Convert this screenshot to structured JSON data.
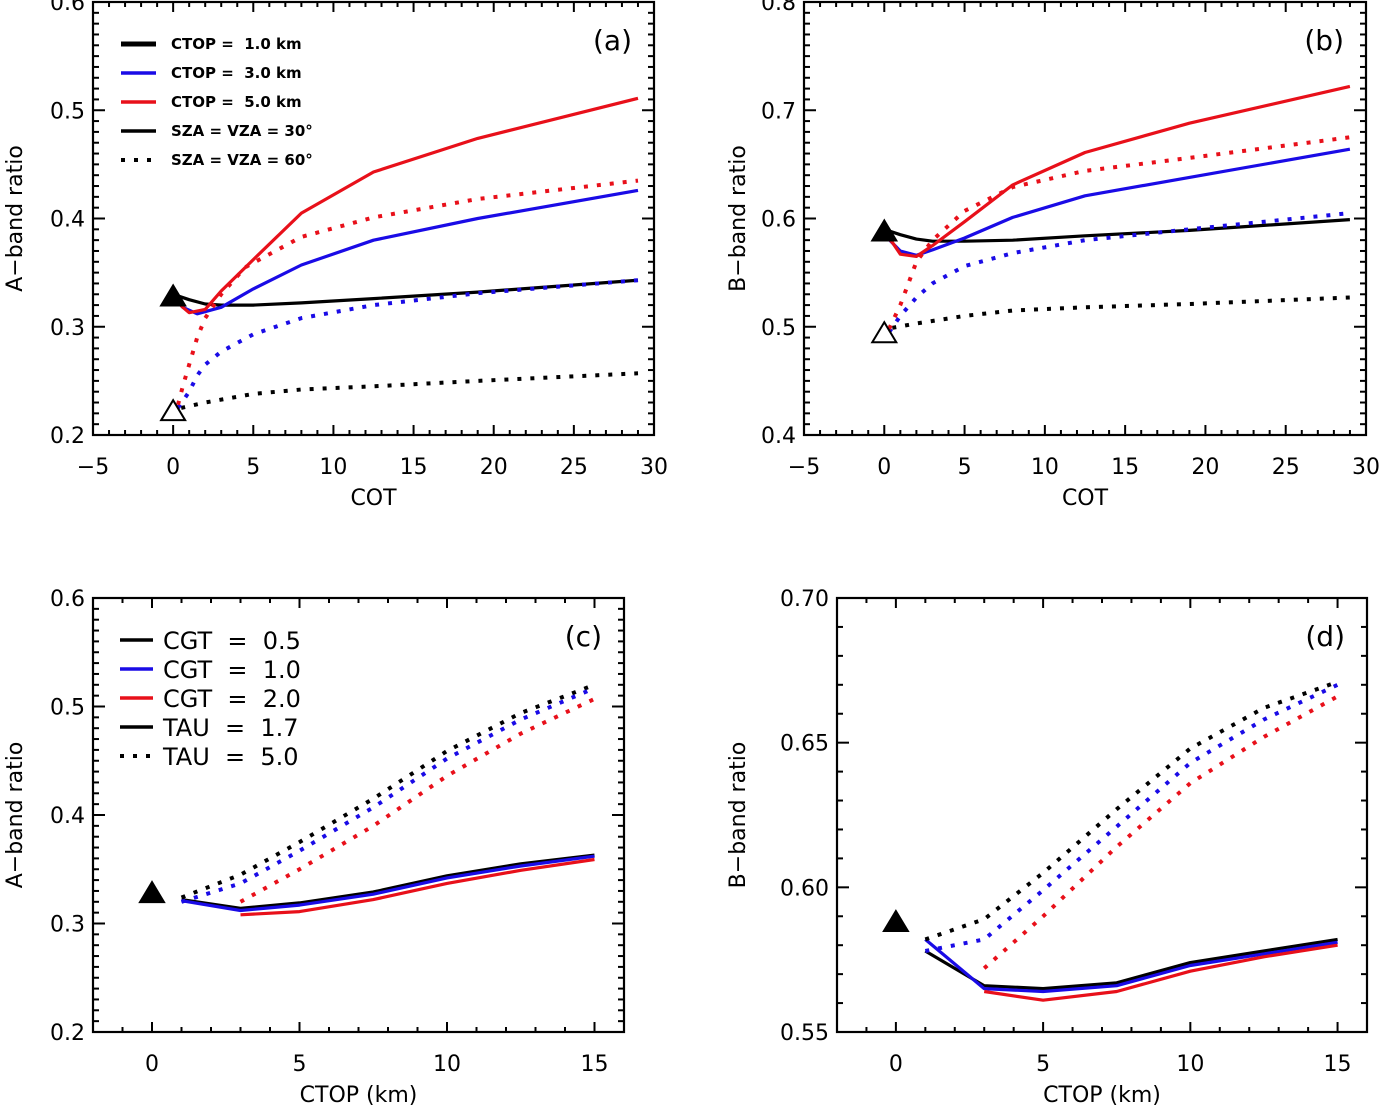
{
  "colors": {
    "black": "#000000",
    "blue": "#1a0be6",
    "red": "#e8101a"
  },
  "chart_data": [
    {
      "id": "a",
      "type": "line",
      "panel_label": "(a)",
      "xlabel": "COT",
      "ylabel": "A−band  ratio",
      "xlim": [
        -5,
        30
      ],
      "ylim": [
        0.2,
        0.6
      ],
      "xticks": [
        -5,
        0,
        5,
        10,
        15,
        20,
        25,
        30
      ],
      "xtick_labels": [
        "−5",
        "0",
        "5",
        "10",
        "15",
        "20",
        "25",
        "30"
      ],
      "xminor": 1,
      "yticks": [
        0.2,
        0.3,
        0.4,
        0.5,
        0.6
      ],
      "ytick_labels": [
        "0.2",
        "0.3",
        "0.4",
        "0.5",
        "0.6"
      ],
      "yminor": 0.01,
      "grid": false,
      "legend_position": "top-left",
      "legend_style": "small",
      "legend": [
        {
          "label": "CTOP =  1.0 km",
          "color": "black",
          "style": "solid"
        },
        {
          "label": "CTOP =  3.0 km",
          "color": "blue",
          "style": "solid"
        },
        {
          "label": "CTOP =  5.0 km",
          "color": "red",
          "style": "solid"
        },
        {
          "label": "SZA = VZA = 30°",
          "color": "black",
          "style": "solid"
        },
        {
          "label": "SZA = VZA = 60°",
          "color": "black",
          "style": "dotted"
        }
      ],
      "series": [
        {
          "name": "CTOP 1.0 km, SZA=VZA=30",
          "color": "black",
          "style": "solid",
          "x": [
            0,
            1,
            2,
            3,
            5,
            8,
            12.5,
            19,
            29
          ],
          "y": [
            0.33,
            0.325,
            0.321,
            0.32,
            0.32,
            0.322,
            0.326,
            0.332,
            0.343
          ]
        },
        {
          "name": "CTOP 3.0 km, SZA=VZA=30",
          "color": "blue",
          "style": "solid",
          "x": [
            0,
            0.6,
            1.5,
            3,
            5,
            8,
            12.5,
            19,
            29
          ],
          "y": [
            0.327,
            0.318,
            0.312,
            0.318,
            0.335,
            0.357,
            0.38,
            0.4,
            0.426
          ]
        },
        {
          "name": "CTOP 5.0 km, SZA=VZA=30",
          "color": "red",
          "style": "solid",
          "x": [
            0,
            0.6,
            1,
            2,
            3,
            5,
            8,
            12.5,
            19,
            29
          ],
          "y": [
            0.327,
            0.318,
            0.313,
            0.316,
            0.333,
            0.362,
            0.405,
            0.443,
            0.474,
            0.511
          ]
        },
        {
          "name": "CTOP 1.0 km, SZA=VZA=60",
          "color": "black",
          "style": "dotted",
          "x": [
            0.5,
            2,
            5,
            8,
            12.5,
            19,
            29
          ],
          "y": [
            0.225,
            0.23,
            0.238,
            0.242,
            0.245,
            0.25,
            0.257
          ]
        },
        {
          "name": "CTOP 3.0 km, SZA=VZA=60",
          "color": "blue",
          "style": "dotted",
          "x": [
            0.3,
            1,
            1.5,
            2,
            3,
            5,
            8,
            12.5,
            19,
            29
          ],
          "y": [
            0.225,
            0.24,
            0.255,
            0.265,
            0.277,
            0.293,
            0.308,
            0.32,
            0.331,
            0.343
          ]
        },
        {
          "name": "CTOP 5.0 km, SZA=VZA=60",
          "color": "red",
          "style": "dotted",
          "x": [
            0.3,
            0.6,
            1,
            1.5,
            2,
            3,
            4.5,
            8,
            12.5,
            19,
            29
          ],
          "y": [
            0.228,
            0.245,
            0.265,
            0.29,
            0.308,
            0.33,
            0.355,
            0.383,
            0.401,
            0.418,
            0.435
          ]
        }
      ],
      "markers": [
        {
          "name": "clear-sky-30",
          "x": 0,
          "y": 0.328,
          "shape": "triangle",
          "fill": "filled"
        },
        {
          "name": "clear-sky-60",
          "x": 0,
          "y": 0.222,
          "shape": "triangle",
          "fill": "open"
        }
      ]
    },
    {
      "id": "b",
      "type": "line",
      "panel_label": "(b)",
      "xlabel": "COT",
      "ylabel": "B−band  ratio",
      "xlim": [
        -5,
        30
      ],
      "ylim": [
        0.4,
        0.8
      ],
      "xticks": [
        -5,
        0,
        5,
        10,
        15,
        20,
        25,
        30
      ],
      "xtick_labels": [
        "−5",
        "0",
        "5",
        "10",
        "15",
        "20",
        "25",
        "30"
      ],
      "xminor": 1,
      "yticks": [
        0.4,
        0.5,
        0.6,
        0.7,
        0.8
      ],
      "ytick_labels": [
        "0.4",
        "0.5",
        "0.6",
        "0.7",
        "0.8"
      ],
      "yminor": 0.01,
      "grid": false,
      "legend": [],
      "series": [
        {
          "name": "CTOP 1.0 km, SZA=VZA=30",
          "color": "black",
          "style": "solid",
          "x": [
            0,
            1,
            2,
            3,
            5,
            8,
            12.5,
            19,
            29
          ],
          "y": [
            0.59,
            0.585,
            0.581,
            0.579,
            0.579,
            0.58,
            0.584,
            0.589,
            0.599
          ]
        },
        {
          "name": "CTOP 3.0 km, SZA=VZA=30",
          "color": "blue",
          "style": "solid",
          "x": [
            0,
            1,
            2,
            3,
            5,
            8,
            12.5,
            19,
            29
          ],
          "y": [
            0.585,
            0.57,
            0.566,
            0.571,
            0.582,
            0.601,
            0.621,
            0.638,
            0.664
          ]
        },
        {
          "name": "CTOP 5.0 km, SZA=VZA=30",
          "color": "red",
          "style": "solid",
          "x": [
            0,
            0.5,
            1,
            2,
            3,
            5,
            8,
            12.5,
            19,
            29
          ],
          "y": [
            0.585,
            0.578,
            0.567,
            0.565,
            0.575,
            0.597,
            0.631,
            0.661,
            0.688,
            0.722
          ]
        },
        {
          "name": "CTOP 1.0 km, SZA=VZA=60",
          "color": "black",
          "style": "dotted",
          "x": [
            0.5,
            2,
            5,
            8,
            12.5,
            19,
            29
          ],
          "y": [
            0.499,
            0.503,
            0.51,
            0.515,
            0.518,
            0.521,
            0.527
          ]
        },
        {
          "name": "CTOP 3.0 km, SZA=VZA=60",
          "color": "blue",
          "style": "dotted",
          "x": [
            0.3,
            1,
            2,
            3,
            5,
            8,
            12.5,
            19,
            29
          ],
          "y": [
            0.495,
            0.51,
            0.527,
            0.54,
            0.556,
            0.568,
            0.58,
            0.59,
            0.605
          ]
        },
        {
          "name": "CTOP 5.0 km, SZA=VZA=60",
          "color": "red",
          "style": "dotted",
          "x": [
            0.3,
            1,
            1.5,
            2,
            3,
            5,
            8,
            12.5,
            19,
            29
          ],
          "y": [
            0.498,
            0.52,
            0.54,
            0.56,
            0.58,
            0.607,
            0.629,
            0.644,
            0.656,
            0.675
          ]
        }
      ],
      "markers": [
        {
          "name": "clear-sky-30",
          "x": 0,
          "y": 0.588,
          "shape": "triangle",
          "fill": "filled"
        },
        {
          "name": "clear-sky-60",
          "x": 0,
          "y": 0.494,
          "shape": "triangle",
          "fill": "open"
        }
      ]
    },
    {
      "id": "c",
      "type": "line",
      "panel_label": "(c)",
      "xlabel": "CTOP (km)",
      "ylabel": "A−band  ratio",
      "xlim": [
        -2,
        16
      ],
      "ylim": [
        0.2,
        0.6
      ],
      "xticks": [
        0,
        5,
        10,
        15
      ],
      "xtick_labels": [
        "0",
        "5",
        "10",
        "15"
      ],
      "xminor": 1,
      "yticks": [
        0.2,
        0.3,
        0.4,
        0.5,
        0.6
      ],
      "ytick_labels": [
        "0.2",
        "0.3",
        "0.4",
        "0.5",
        "0.6"
      ],
      "yminor": 0.01,
      "grid": false,
      "legend_position": "top-left",
      "legend_style": "large",
      "legend": [
        {
          "label": "CGT  =  0.5",
          "color": "black",
          "style": "solid"
        },
        {
          "label": "CGT  =  1.0",
          "color": "blue",
          "style": "solid"
        },
        {
          "label": "CGT  =  2.0",
          "color": "red",
          "style": "solid"
        },
        {
          "label": "TAU  =  1.7",
          "color": "black",
          "style": "solid"
        },
        {
          "label": "TAU  =  5.0",
          "color": "black",
          "style": "dotted"
        }
      ],
      "series": [
        {
          "name": "CGT 0.5, TAU 1.7",
          "color": "black",
          "style": "solid",
          "x": [
            1,
            3,
            5,
            7.5,
            10,
            12.5,
            15
          ],
          "y": [
            0.322,
            0.314,
            0.319,
            0.329,
            0.344,
            0.355,
            0.363
          ]
        },
        {
          "name": "CGT 1.0, TAU 1.7",
          "color": "blue",
          "style": "solid",
          "x": [
            1,
            3,
            5,
            7.5,
            10,
            12.5,
            15
          ],
          "y": [
            0.321,
            0.312,
            0.317,
            0.327,
            0.342,
            0.353,
            0.362
          ]
        },
        {
          "name": "CGT 2.0, TAU 1.7",
          "color": "red",
          "style": "solid",
          "x": [
            3,
            5,
            7.5,
            10,
            12.5,
            15
          ],
          "y": [
            0.308,
            0.311,
            0.322,
            0.337,
            0.349,
            0.359
          ]
        },
        {
          "name": "CGT 0.5, TAU 5.0",
          "color": "black",
          "style": "dotted",
          "x": [
            1,
            3,
            5,
            7.5,
            10,
            12.5,
            15
          ],
          "y": [
            0.324,
            0.345,
            0.375,
            0.415,
            0.459,
            0.494,
            0.52
          ]
        },
        {
          "name": "CGT 1.0, TAU 5.0",
          "color": "blue",
          "style": "dotted",
          "x": [
            1,
            3,
            5,
            7.5,
            10,
            12.5,
            15
          ],
          "y": [
            0.32,
            0.337,
            0.367,
            0.407,
            0.452,
            0.488,
            0.517
          ]
        },
        {
          "name": "CGT 2.0, TAU 5.0",
          "color": "red",
          "style": "dotted",
          "x": [
            3,
            5,
            7.5,
            10,
            12.5,
            15
          ],
          "y": [
            0.32,
            0.35,
            0.39,
            0.436,
            0.475,
            0.507
          ]
        }
      ],
      "markers": [
        {
          "name": "clear-sky",
          "x": 0,
          "y": 0.328,
          "shape": "triangle",
          "fill": "filled"
        }
      ]
    },
    {
      "id": "d",
      "type": "line",
      "panel_label": "(d)",
      "xlabel": "CTOP (km)",
      "ylabel": "B−band  ratio",
      "xlim": [
        -2,
        16
      ],
      "ylim": [
        0.55,
        0.7
      ],
      "xticks": [
        0,
        5,
        10,
        15
      ],
      "xtick_labels": [
        "0",
        "5",
        "10",
        "15"
      ],
      "xminor": 1,
      "yticks": [
        0.55,
        0.6,
        0.65,
        0.7
      ],
      "ytick_labels": [
        "0.55",
        "0.60",
        "0.65",
        "0.70"
      ],
      "yminor": 0.01,
      "grid": false,
      "legend": [],
      "series": [
        {
          "name": "CGT 0.5, TAU 1.7",
          "color": "black",
          "style": "solid",
          "x": [
            1,
            3,
            5,
            7.5,
            10,
            12.5,
            15
          ],
          "y": [
            0.578,
            0.566,
            0.565,
            0.567,
            0.574,
            0.578,
            0.582
          ]
        },
        {
          "name": "CGT 1.0, TAU 1.7",
          "color": "blue",
          "style": "solid",
          "x": [
            1,
            3,
            5,
            7.5,
            10,
            12.5,
            15
          ],
          "y": [
            0.582,
            0.565,
            0.564,
            0.566,
            0.573,
            0.577,
            0.581
          ]
        },
        {
          "name": "CGT 2.0, TAU 1.7",
          "color": "red",
          "style": "solid",
          "x": [
            3,
            5,
            7.5,
            10,
            12.5,
            15
          ],
          "y": [
            0.564,
            0.561,
            0.564,
            0.571,
            0.576,
            0.58
          ]
        },
        {
          "name": "CGT 0.5, TAU 5.0",
          "color": "black",
          "style": "dotted",
          "x": [
            1,
            3,
            5,
            7.5,
            10,
            12.5,
            15
          ],
          "y": [
            0.582,
            0.589,
            0.605,
            0.627,
            0.648,
            0.662,
            0.671
          ]
        },
        {
          "name": "CGT 1.0, TAU 5.0",
          "color": "blue",
          "style": "dotted",
          "x": [
            1,
            3,
            5,
            7.5,
            10,
            12.5,
            15
          ],
          "y": [
            0.578,
            0.582,
            0.599,
            0.621,
            0.643,
            0.658,
            0.67
          ]
        },
        {
          "name": "CGT 2.0, TAU 5.0",
          "color": "red",
          "style": "dotted",
          "x": [
            3,
            5,
            7.5,
            10,
            12.5,
            15
          ],
          "y": [
            0.572,
            0.59,
            0.614,
            0.636,
            0.652,
            0.666
          ]
        }
      ],
      "markers": [
        {
          "name": "clear-sky",
          "x": 0,
          "y": 0.588,
          "shape": "triangle",
          "fill": "filled"
        }
      ]
    }
  ]
}
